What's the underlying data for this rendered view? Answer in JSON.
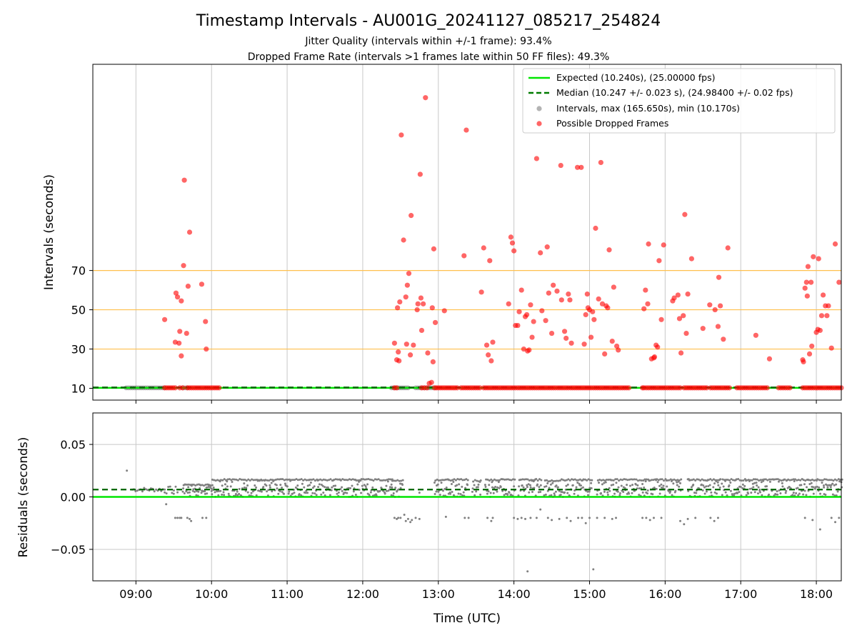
{
  "colors": {
    "expected": "#00e600",
    "median": "#007a00",
    "intervals": "#808080",
    "dropped": "#ff0000",
    "threshold": "#ffc04d",
    "grid": "#c8c8c8"
  },
  "chart_data": [
    {
      "type": "scatter",
      "title": "Timestamp Intervals - AU001G_20241127_085217_254824",
      "subtitle_lines": [
        "Jitter Quality (intervals within +/-1 frame): 93.4%",
        "Dropped Frame Rate (intervals >1 frames late within 50 FF files): 49.3%"
      ],
      "ylabel": "Intervals (seconds)",
      "xlim_hours": [
        8.43,
        18.33
      ],
      "ylim": [
        4,
        175
      ],
      "yticks": [
        {
          "value": 10,
          "label": "10"
        },
        {
          "value": 30,
          "label": "30"
        },
        {
          "value": 50,
          "label": "50"
        },
        {
          "value": 70,
          "label": "70"
        }
      ],
      "threshold_lines": [
        30,
        50,
        70
      ],
      "expected_value": 10.24,
      "median_value": 10.247,
      "grid": true,
      "legend": {
        "placement": "top-right",
        "entries": [
          {
            "kind": "line-solid",
            "label": "Expected (10.240s), (25.00000 fps)"
          },
          {
            "kind": "line-dashed",
            "label": "Median (10.247 +/- 0.023 s), (24.98400 +/- 0.02 fps)"
          },
          {
            "kind": "dot-gray",
            "label": "Intervals, max (165.650s), min (10.170s)"
          },
          {
            "kind": "dot-red",
            "label": "Possible Dropped Frames"
          }
        ]
      },
      "regular_intervals_segments": [
        [
          8.87,
          9.38
        ],
        [
          9.62,
          9.68
        ],
        [
          12.38,
          12.6
        ],
        [
          12.7,
          12.96
        ]
      ],
      "dropped_baseline_segments": [
        [
          9.38,
          9.52
        ],
        [
          9.58,
          9.62
        ],
        [
          9.68,
          10.1
        ],
        [
          12.42,
          12.45
        ],
        [
          12.78,
          12.85
        ],
        [
          12.95,
          13.25
        ],
        [
          13.3,
          13.55
        ],
        [
          13.6,
          14.02
        ],
        [
          14.05,
          14.55
        ],
        [
          14.58,
          14.72
        ],
        [
          14.75,
          15.02
        ],
        [
          15.05,
          15.52
        ],
        [
          15.7,
          15.72
        ],
        [
          15.75,
          16.2
        ],
        [
          16.25,
          16.55
        ],
        [
          16.6,
          16.85
        ],
        [
          16.95,
          17.35
        ],
        [
          17.5,
          17.65
        ],
        [
          17.82,
          18.33
        ]
      ],
      "dropped_points": [
        [
          9.38,
          45
        ],
        [
          9.52,
          33.5
        ],
        [
          9.53,
          58.5
        ],
        [
          9.55,
          56.5
        ],
        [
          9.57,
          33
        ],
        [
          9.58,
          39
        ],
        [
          9.6,
          26.5
        ],
        [
          9.6,
          54.5
        ],
        [
          9.63,
          72.5
        ],
        [
          9.64,
          116
        ],
        [
          9.67,
          38
        ],
        [
          9.69,
          62
        ],
        [
          9.71,
          89.5
        ],
        [
          9.87,
          63
        ],
        [
          9.92,
          44
        ],
        [
          9.93,
          30
        ],
        [
          12.42,
          33
        ],
        [
          12.45,
          24.5
        ],
        [
          12.46,
          51
        ],
        [
          12.47,
          28.5
        ],
        [
          12.48,
          24
        ],
        [
          12.49,
          54
        ],
        [
          12.51,
          139
        ],
        [
          12.54,
          85.5
        ],
        [
          12.57,
          56.5
        ],
        [
          12.58,
          32.5
        ],
        [
          12.59,
          62.5
        ],
        [
          12.61,
          68.5
        ],
        [
          12.63,
          27
        ],
        [
          12.64,
          98
        ],
        [
          12.67,
          32
        ],
        [
          12.72,
          50
        ],
        [
          12.73,
          53
        ],
        [
          12.76,
          119
        ],
        [
          12.77,
          56
        ],
        [
          12.78,
          39.5
        ],
        [
          12.8,
          53
        ],
        [
          12.83,
          158
        ],
        [
          12.86,
          28
        ],
        [
          12.88,
          12.5
        ],
        [
          12.91,
          13
        ],
        [
          12.92,
          51
        ],
        [
          12.93,
          23.5
        ],
        [
          12.94,
          81
        ],
        [
          12.96,
          43.5
        ],
        [
          13.08,
          49.5
        ],
        [
          13.34,
          77.5
        ],
        [
          13.37,
          141.5
        ],
        [
          13.57,
          59
        ],
        [
          13.6,
          81.5
        ],
        [
          13.64,
          32
        ],
        [
          13.66,
          27
        ],
        [
          13.68,
          75
        ],
        [
          13.7,
          24
        ],
        [
          13.72,
          33.5
        ],
        [
          13.93,
          53
        ],
        [
          13.96,
          87
        ],
        [
          13.98,
          84
        ],
        [
          14.0,
          80
        ],
        [
          14.02,
          42
        ],
        [
          14.05,
          42
        ],
        [
          14.07,
          49
        ],
        [
          14.1,
          60
        ],
        [
          14.13,
          30
        ],
        [
          14.15,
          46.5
        ],
        [
          14.17,
          47.5
        ],
        [
          14.18,
          29
        ],
        [
          14.2,
          29.5
        ],
        [
          14.22,
          52.5
        ],
        [
          14.24,
          36
        ],
        [
          14.26,
          44
        ],
        [
          14.3,
          127
        ],
        [
          14.35,
          79
        ],
        [
          14.37,
          49.5
        ],
        [
          14.42,
          44.5
        ],
        [
          14.44,
          82
        ],
        [
          14.46,
          58.5
        ],
        [
          14.5,
          38
        ],
        [
          14.52,
          62.5
        ],
        [
          14.57,
          59.5
        ],
        [
          14.62,
          123.5
        ],
        [
          14.63,
          55
        ],
        [
          14.67,
          39
        ],
        [
          14.69,
          35.5
        ],
        [
          14.72,
          58
        ],
        [
          14.74,
          55
        ],
        [
          14.76,
          33
        ],
        [
          14.84,
          122.5
        ],
        [
          14.89,
          122.5
        ],
        [
          14.93,
          32.5
        ],
        [
          14.95,
          47.5
        ],
        [
          14.97,
          58
        ],
        [
          14.98,
          51
        ],
        [
          15.0,
          50
        ],
        [
          15.02,
          36
        ],
        [
          15.04,
          49
        ],
        [
          15.06,
          45
        ],
        [
          15.08,
          91.5
        ],
        [
          15.12,
          55.5
        ],
        [
          15.15,
          125
        ],
        [
          15.17,
          53
        ],
        [
          15.2,
          27.5
        ],
        [
          15.22,
          52
        ],
        [
          15.24,
          51
        ],
        [
          15.26,
          80.5
        ],
        [
          15.3,
          34
        ],
        [
          15.32,
          61.5
        ],
        [
          15.36,
          31.5
        ],
        [
          15.38,
          29.5
        ],
        [
          15.72,
          50.5
        ],
        [
          15.74,
          60
        ],
        [
          15.77,
          53
        ],
        [
          15.78,
          83.5
        ],
        [
          15.82,
          25
        ],
        [
          15.85,
          25.5
        ],
        [
          15.86,
          26
        ],
        [
          15.88,
          32
        ],
        [
          15.9,
          31
        ],
        [
          15.92,
          75
        ],
        [
          15.95,
          45
        ],
        [
          15.98,
          83
        ],
        [
          16.1,
          54.5
        ],
        [
          16.12,
          56
        ],
        [
          16.17,
          57.5
        ],
        [
          16.19,
          45.5
        ],
        [
          16.21,
          28
        ],
        [
          16.24,
          47
        ],
        [
          16.26,
          98.5
        ],
        [
          16.28,
          38
        ],
        [
          16.3,
          58
        ],
        [
          16.35,
          76
        ],
        [
          16.5,
          40.5
        ],
        [
          16.59,
          52.5
        ],
        [
          16.66,
          50
        ],
        [
          16.7,
          41.5
        ],
        [
          16.71,
          66.5
        ],
        [
          16.73,
          52
        ],
        [
          16.77,
          35
        ],
        [
          16.83,
          81.5
        ],
        [
          17.2,
          37
        ],
        [
          17.38,
          25
        ],
        [
          17.82,
          24.5
        ],
        [
          17.83,
          23.5
        ],
        [
          17.85,
          61
        ],
        [
          17.87,
          64
        ],
        [
          17.88,
          57
        ],
        [
          17.89,
          72
        ],
        [
          17.91,
          27.5
        ],
        [
          17.93,
          64
        ],
        [
          17.94,
          31.5
        ],
        [
          17.96,
          77
        ],
        [
          18.0,
          38.5
        ],
        [
          18.02,
          40
        ],
        [
          18.03,
          76
        ],
        [
          18.05,
          39.5
        ],
        [
          18.07,
          47
        ],
        [
          18.09,
          57.5
        ],
        [
          18.12,
          52
        ],
        [
          18.14,
          47
        ],
        [
          18.16,
          52
        ],
        [
          18.2,
          30.5
        ],
        [
          18.25,
          83.5
        ],
        [
          18.3,
          64
        ]
      ]
    },
    {
      "type": "scatter",
      "ylabel": "Residuals (seconds)",
      "xlabel": "Time (UTC)",
      "xlim_hours": [
        8.43,
        18.33
      ],
      "ylim": [
        -0.08,
        0.08
      ],
      "yticks": [
        {
          "value": 0.05,
          "label": "0.05"
        },
        {
          "value": 0.0,
          "label": "0.00"
        },
        {
          "value": -0.05,
          "label": "−0.05"
        }
      ],
      "xticks": [
        {
          "value": 9,
          "label": "09:00"
        },
        {
          "value": 10,
          "label": "10:00"
        },
        {
          "value": 11,
          "label": "11:00"
        },
        {
          "value": 12,
          "label": "12:00"
        },
        {
          "value": 13,
          "label": "13:00"
        },
        {
          "value": 14,
          "label": "14:00"
        },
        {
          "value": 15,
          "label": "15:00"
        },
        {
          "value": 16,
          "label": "16:00"
        },
        {
          "value": 17,
          "label": "17:00"
        },
        {
          "value": 18,
          "label": "18:00"
        }
      ],
      "expected_value": 0.0,
      "median_value": 0.007,
      "grid": true,
      "band_segments": [
        [
          8.95,
          9.38,
          0.005,
          0.009
        ],
        [
          9.38,
          9.55,
          0.003,
          0.01
        ],
        [
          9.62,
          10.0,
          0.0,
          0.012
        ],
        [
          10.0,
          12.38,
          0.0,
          0.017
        ],
        [
          12.38,
          12.52,
          0.0,
          0.016
        ],
        [
          12.95,
          13.38,
          0.0,
          0.017
        ],
        [
          13.45,
          13.55,
          0.0,
          0.016
        ],
        [
          13.62,
          14.0,
          0.0,
          0.017
        ],
        [
          14.06,
          14.35,
          0.0,
          0.017
        ],
        [
          14.4,
          14.6,
          0.0,
          0.016
        ],
        [
          14.62,
          15.02,
          0.0,
          0.017
        ],
        [
          15.1,
          15.7,
          0.0,
          0.017
        ],
        [
          15.72,
          16.2,
          0.0,
          0.017
        ],
        [
          16.3,
          16.72,
          0.0,
          0.017
        ],
        [
          16.75,
          17.8,
          0.0,
          0.017
        ],
        [
          17.82,
          18.33,
          0.0,
          0.017
        ]
      ],
      "outlier_points": [
        [
          8.88,
          0.025
        ],
        [
          9.4,
          -0.007
        ],
        [
          9.52,
          -0.02
        ],
        [
          9.55,
          -0.02
        ],
        [
          9.58,
          -0.02
        ],
        [
          9.6,
          -0.02
        ],
        [
          9.68,
          -0.02
        ],
        [
          9.71,
          -0.021
        ],
        [
          9.73,
          -0.023
        ],
        [
          9.88,
          -0.02
        ],
        [
          9.93,
          -0.02
        ],
        [
          12.42,
          -0.02
        ],
        [
          12.45,
          -0.021
        ],
        [
          12.47,
          -0.02
        ],
        [
          12.5,
          -0.02
        ],
        [
          12.55,
          -0.017
        ],
        [
          12.57,
          -0.023
        ],
        [
          12.6,
          -0.021
        ],
        [
          12.63,
          -0.024
        ],
        [
          12.65,
          -0.022
        ],
        [
          12.7,
          -0.02
        ],
        [
          12.75,
          -0.021
        ],
        [
          13.1,
          -0.019
        ],
        [
          13.35,
          -0.02
        ],
        [
          13.4,
          -0.02
        ],
        [
          13.65,
          -0.02
        ],
        [
          13.7,
          -0.023
        ],
        [
          13.72,
          -0.02
        ],
        [
          14.0,
          -0.02
        ],
        [
          14.05,
          -0.021
        ],
        [
          14.1,
          -0.02
        ],
        [
          14.15,
          -0.021
        ],
        [
          14.18,
          -0.071
        ],
        [
          14.22,
          -0.02
        ],
        [
          14.3,
          -0.02
        ],
        [
          14.35,
          -0.012
        ],
        [
          14.45,
          -0.02
        ],
        [
          14.5,
          -0.022
        ],
        [
          14.6,
          -0.021
        ],
        [
          14.7,
          -0.02
        ],
        [
          14.75,
          -0.023
        ],
        [
          14.85,
          -0.02
        ],
        [
          14.9,
          -0.02
        ],
        [
          14.95,
          -0.025
        ],
        [
          15.0,
          -0.02
        ],
        [
          15.05,
          -0.069
        ],
        [
          15.1,
          -0.02
        ],
        [
          15.2,
          -0.02
        ],
        [
          15.3,
          -0.021
        ],
        [
          15.35,
          -0.02
        ],
        [
          15.7,
          -0.02
        ],
        [
          15.75,
          -0.02
        ],
        [
          15.8,
          -0.022
        ],
        [
          15.85,
          -0.02
        ],
        [
          15.95,
          -0.02
        ],
        [
          16.2,
          -0.023
        ],
        [
          16.25,
          -0.026
        ],
        [
          16.3,
          -0.021
        ],
        [
          16.4,
          -0.02
        ],
        [
          16.6,
          -0.02
        ],
        [
          16.65,
          -0.023
        ],
        [
          16.7,
          -0.02
        ],
        [
          17.85,
          -0.02
        ],
        [
          17.95,
          -0.022
        ],
        [
          18.05,
          -0.031
        ],
        [
          18.2,
          -0.02
        ],
        [
          18.25,
          -0.024
        ],
        [
          18.3,
          -0.02
        ],
        [
          9.5,
          0.003
        ],
        [
          12.75,
          0.004
        ],
        [
          13.0,
          0.005
        ],
        [
          14.25,
          0.008
        ],
        [
          14.55,
          0.01
        ],
        [
          15.15,
          0.003
        ],
        [
          15.6,
          0.006
        ],
        [
          16.45,
          0.008
        ],
        [
          16.95,
          0.004
        ],
        [
          17.25,
          0.006
        ],
        [
          17.7,
          0.004
        ],
        [
          18.1,
          0.009
        ]
      ]
    }
  ]
}
